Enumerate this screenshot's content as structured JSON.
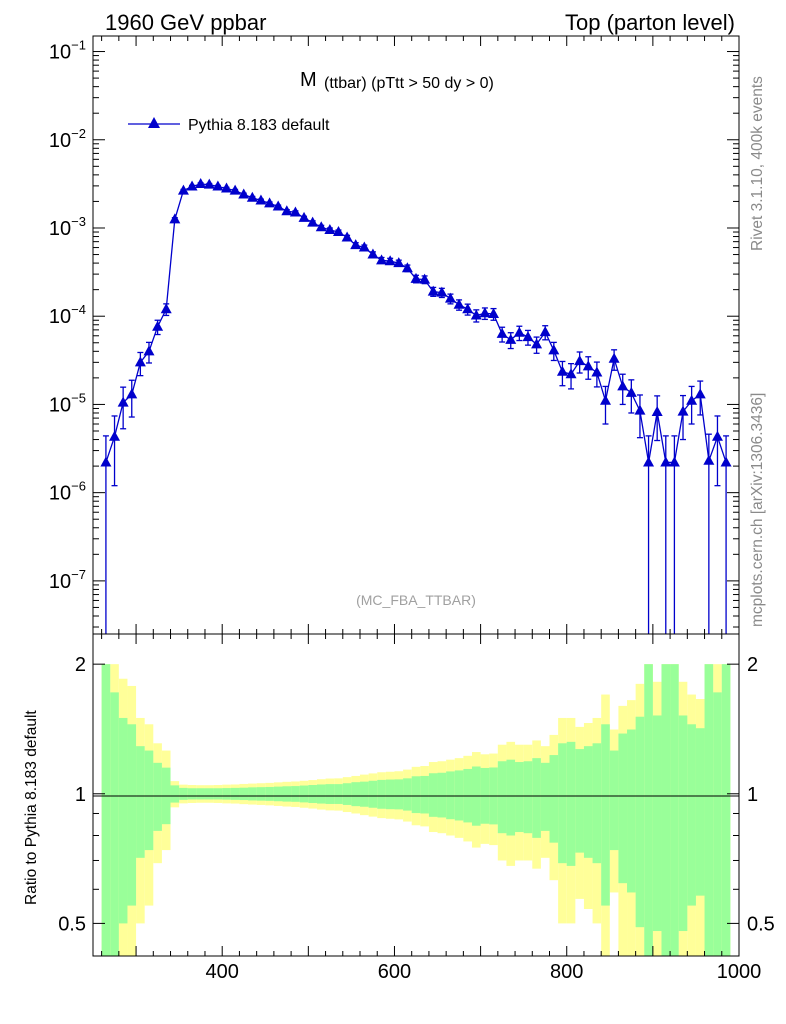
{
  "header": {
    "left": "1960 GeV ppbar",
    "right": "Top (parton level)"
  },
  "side": {
    "rivet": "Rivet 3.1.10,  400k events",
    "mcplots": "mcplots.cern.ch [arXiv:1306.3436]"
  },
  "plot": {
    "title_main": "M",
    "title_sub": "(ttbar) (pTtt > 50 dy > 0)",
    "watermark": "(MC_FBA_TTBAR)"
  },
  "legend": {
    "label": "Pythia 8.183 default"
  },
  "ratio": {
    "ylabel": "Ratio to Pythia 8.183 default"
  },
  "colors": {
    "series": "#0000cc",
    "band_inner": "#99ff99",
    "band_outer": "#ffff99"
  },
  "chart_data": [
    {
      "type": "line",
      "title": "M (ttbar) (pTtt > 50 dy > 0)",
      "xlabel": "",
      "ylabel": "",
      "xlim": [
        250,
        1000
      ],
      "ylim": [
        2.5e-08,
        0.15
      ],
      "yscale": "log",
      "x_ticks": [
        400,
        600,
        800,
        1000
      ],
      "y_ticks": [
        {
          "value": 1e-07,
          "base": "10",
          "exp": "−7"
        },
        {
          "value": 1e-06,
          "base": "10",
          "exp": "−6"
        },
        {
          "value": 1e-05,
          "base": "10",
          "exp": "−5"
        },
        {
          "value": 0.0001,
          "base": "10",
          "exp": "−4"
        },
        {
          "value": 0.001,
          "base": "10",
          "exp": "−3"
        },
        {
          "value": 0.01,
          "base": "10",
          "exp": "−2"
        },
        {
          "value": 0.1,
          "base": "10",
          "exp": "−1"
        }
      ],
      "series": [
        {
          "name": "Pythia 8.183 default",
          "x": [
            265,
            275,
            285,
            295,
            305,
            315,
            325,
            335,
            345,
            355,
            365,
            375,
            385,
            395,
            405,
            415,
            425,
            435,
            445,
            455,
            465,
            475,
            485,
            495,
            505,
            515,
            525,
            535,
            545,
            555,
            565,
            575,
            585,
            595,
            605,
            615,
            625,
            635,
            645,
            655,
            665,
            675,
            685,
            695,
            705,
            715,
            725,
            735,
            745,
            755,
            765,
            775,
            785,
            795,
            805,
            815,
            825,
            835,
            845,
            855,
            865,
            875,
            885,
            895,
            905,
            915,
            925,
            935,
            945,
            955,
            965,
            975,
            985
          ],
          "y": [
            2.2e-06,
            4.3e-06,
            1.05e-05,
            1.3e-05,
            3e-05,
            4e-05,
            7.6e-05,
            0.00012,
            0.00125,
            0.00265,
            0.00295,
            0.00315,
            0.0031,
            0.00295,
            0.0028,
            0.00265,
            0.0024,
            0.0022,
            0.00205,
            0.0019,
            0.00175,
            0.00155,
            0.0015,
            0.0013,
            0.00115,
            0.00102,
            0.00095,
            0.0009,
            0.00078,
            0.00064,
            0.0006,
            0.0005,
            0.00043,
            0.00042,
            0.0004,
            0.00035,
            0.000265,
            0.00026,
            0.00019,
            0.000185,
            0.000158,
            0.000135,
            0.00012,
            0.000102,
            0.000108,
            0.000106,
            6.3e-05,
            5.4e-05,
            6.5e-05,
            5.8e-05,
            4.8e-05,
            6.6e-05,
            4.1e-05,
            2.35e-05,
            2.2e-05,
            3.1e-05,
            2.7e-05,
            2.3e-05,
            1.1e-05,
            3.3e-05,
            1.6e-05,
            1.35e-05,
            8.5e-06,
            2.2e-06,
            8.2e-06,
            2.2e-06,
            2.2e-06,
            8.3e-06,
            1.1e-05,
            1.3e-05,
            2.3e-06,
            4.3e-06,
            2.2e-06
          ],
          "yerr": [
            2.2e-06,
            3.1e-06,
            5.2e-06,
            5.8e-06,
            8.8e-06,
            1.05e-05,
            1.4e-05,
            1.8e-05,
            5.8e-05,
            8.5e-05,
            9e-05,
            9.3e-05,
            9.2e-05,
            9e-05,
            8.7e-05,
            8.4e-05,
            8e-05,
            7.7e-05,
            7.4e-05,
            7.1e-05,
            6.8e-05,
            6.4e-05,
            6.3e-05,
            5.8e-05,
            5.5e-05,
            5.2e-05,
            5e-05,
            4.8e-05,
            4.5e-05,
            4.1e-05,
            4e-05,
            3.6e-05,
            3.3e-05,
            3.3e-05,
            3.2e-05,
            3e-05,
            2.6e-05,
            2.6e-05,
            2.2e-05,
            2.2e-05,
            2e-05,
            1.8e-05,
            1.7e-05,
            1.6e-05,
            1.6e-05,
            1.6e-05,
            1.2e-05,
            1.1e-05,
            1.2e-05,
            1.1e-05,
            1e-05,
            1.2e-05,
            9.5e-06,
            7.2e-06,
            7e-06,
            8.3e-06,
            7.7e-06,
            7.2e-06,
            5e-06,
            8.6e-06,
            6e-06,
            5.5e-06,
            4.3e-06,
            2.2e-06,
            4.3e-06,
            2.2e-06,
            2.2e-06,
            4.3e-06,
            5e-06,
            5.4e-06,
            2.3e-06,
            3.1e-06,
            2.2e-06
          ]
        }
      ]
    },
    {
      "type": "area",
      "title": "",
      "xlabel": "",
      "ylabel": "Ratio to Pythia 8.183 default",
      "xlim": [
        250,
        1000
      ],
      "ylim": [
        0.42,
        2.35
      ],
      "yscale": "log",
      "x_ticks": [
        400,
        600,
        800,
        1000
      ],
      "y_ticks": [
        0.5,
        1,
        2
      ],
      "reference": 1,
      "bins_low": [
        260,
        270,
        280,
        290,
        300,
        310,
        320,
        330,
        340,
        350,
        360,
        370,
        380,
        390,
        400,
        410,
        420,
        430,
        440,
        450,
        460,
        470,
        480,
        490,
        500,
        510,
        520,
        530,
        540,
        550,
        560,
        570,
        580,
        590,
        600,
        610,
        620,
        630,
        640,
        650,
        660,
        670,
        680,
        690,
        700,
        710,
        720,
        730,
        740,
        750,
        760,
        770,
        780,
        790,
        800,
        810,
        820,
        830,
        840,
        850,
        860,
        870,
        880,
        890,
        900,
        910,
        920,
        930,
        940,
        950,
        960,
        970,
        980
      ],
      "bins_high": [
        270,
        280,
        290,
        300,
        310,
        320,
        330,
        340,
        350,
        360,
        370,
        380,
        390,
        400,
        410,
        420,
        430,
        440,
        450,
        460,
        470,
        480,
        490,
        500,
        510,
        520,
        530,
        540,
        550,
        560,
        570,
        580,
        590,
        600,
        610,
        620,
        630,
        640,
        650,
        660,
        670,
        680,
        690,
        700,
        710,
        720,
        730,
        740,
        750,
        760,
        770,
        780,
        790,
        800,
        810,
        820,
        830,
        840,
        850,
        860,
        870,
        880,
        890,
        900,
        910,
        920,
        930,
        940,
        950,
        960,
        970,
        980,
        990
      ],
      "inner_rel": [
        1.0,
        0.72,
        0.5,
        0.45,
        0.29,
        0.26,
        0.18,
        0.15,
        0.046,
        0.032,
        0.03,
        0.03,
        0.03,
        0.03,
        0.031,
        0.032,
        0.033,
        0.035,
        0.036,
        0.037,
        0.039,
        0.041,
        0.042,
        0.045,
        0.048,
        0.051,
        0.053,
        0.053,
        0.058,
        0.064,
        0.067,
        0.072,
        0.077,
        0.079,
        0.08,
        0.086,
        0.098,
        0.1,
        0.116,
        0.119,
        0.127,
        0.133,
        0.142,
        0.157,
        0.148,
        0.151,
        0.19,
        0.2,
        0.185,
        0.19,
        0.21,
        0.18,
        0.23,
        0.31,
        0.32,
        0.27,
        0.29,
        0.31,
        0.45,
        0.26,
        0.38,
        0.41,
        0.51,
        1.0,
        0.52,
        1.0,
        1.0,
        0.52,
        0.45,
        0.42,
        1.0,
        0.72,
        1.0
      ],
      "outer_rel": [
        1.0,
        1.0,
        0.85,
        0.78,
        0.5,
        0.45,
        0.31,
        0.26,
        0.07,
        0.05,
        0.048,
        0.047,
        0.047,
        0.048,
        0.05,
        0.051,
        0.054,
        0.056,
        0.058,
        0.06,
        0.063,
        0.066,
        0.068,
        0.072,
        0.076,
        0.081,
        0.085,
        0.086,
        0.093,
        0.1,
        0.108,
        0.115,
        0.122,
        0.125,
        0.128,
        0.138,
        0.155,
        0.16,
        0.185,
        0.19,
        0.2,
        0.21,
        0.225,
        0.25,
        0.235,
        0.24,
        0.3,
        0.32,
        0.3,
        0.3,
        0.33,
        0.29,
        0.37,
        0.5,
        0.5,
        0.43,
        0.46,
        0.5,
        0.7,
        0.41,
        0.6,
        0.65,
        0.8,
        1.0,
        0.82,
        1.0,
        1.0,
        0.82,
        0.7,
        0.66,
        1.0,
        1.0,
        1.0
      ]
    }
  ]
}
